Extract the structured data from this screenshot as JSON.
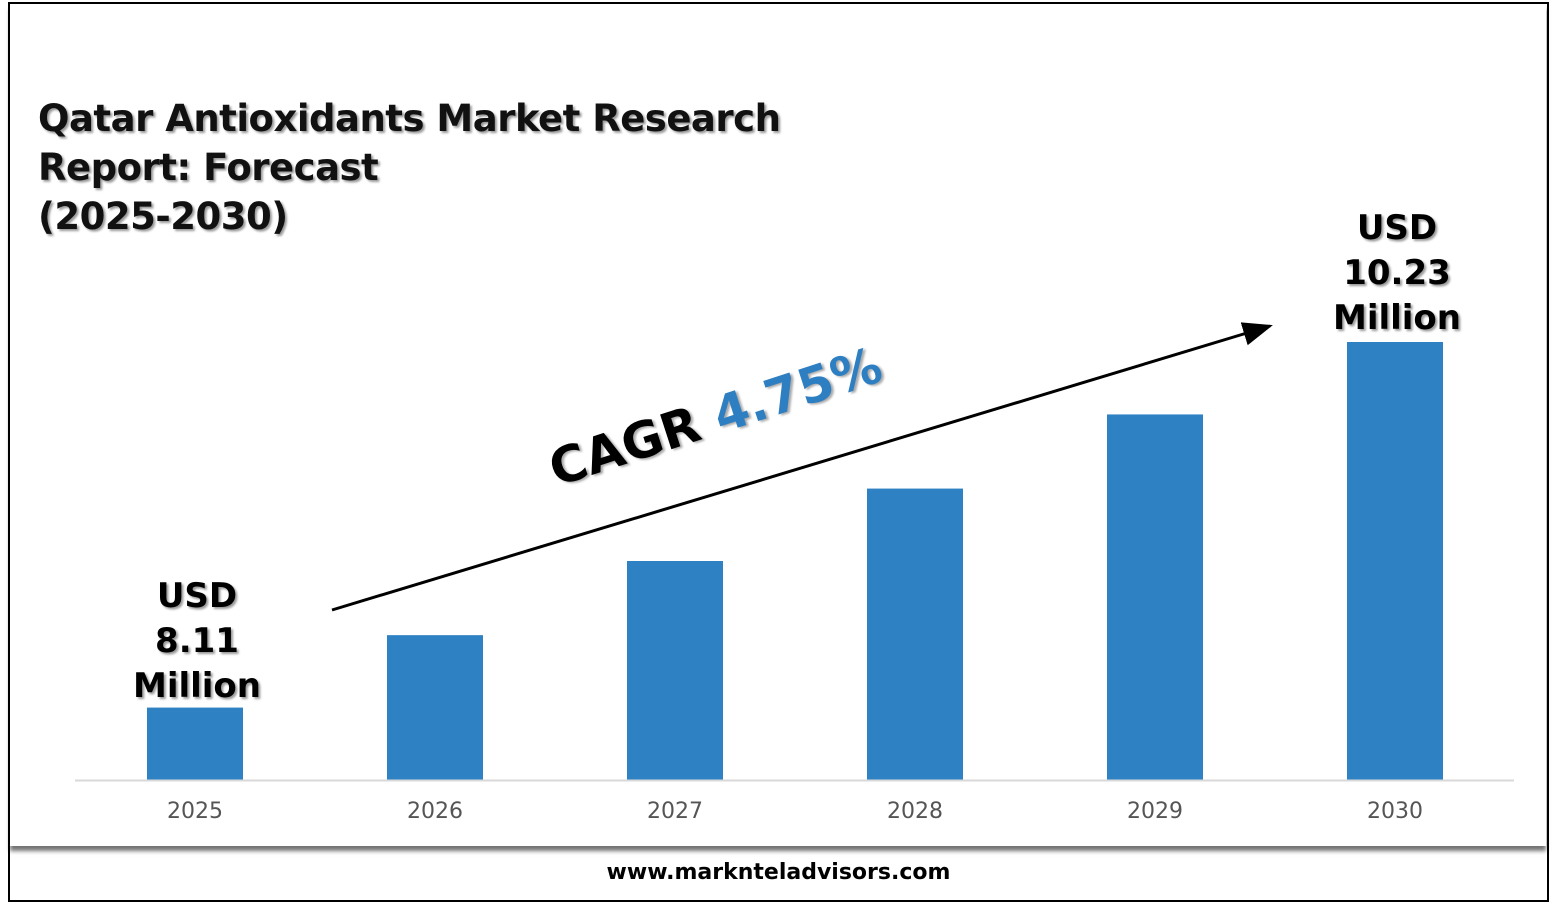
{
  "chart_data": {
    "type": "bar",
    "title": [
      "Qatar Antioxidants Market Research",
      "Report: Forecast",
      "(2025-2030)"
    ],
    "categories": [
      "2025",
      "2026",
      "2027",
      "2028",
      "2029",
      "2030"
    ],
    "values": [
      8.11,
      8.53,
      8.96,
      9.38,
      9.81,
      10.23
    ],
    "ylim": [
      7.69,
      10.5
    ],
    "grid": false,
    "bar_color": "#2e82c4",
    "xlabel": "",
    "ylabel": "",
    "data_labels": {
      "first": [
        "USD",
        "8.11",
        "Million"
      ],
      "last": [
        "USD",
        "10.23",
        "Million"
      ]
    },
    "annotation": {
      "prefix": "CAGR",
      "value": "4.75%",
      "value_color": "#2e7fc2"
    }
  },
  "footer": {
    "url": "www.marknteladvisors.com"
  }
}
